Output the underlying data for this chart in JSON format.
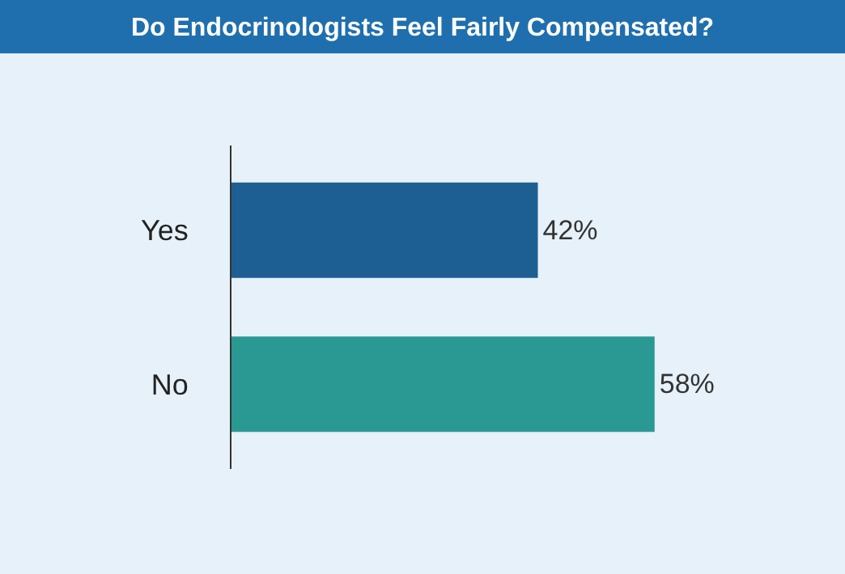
{
  "chart_data": {
    "type": "bar",
    "orientation": "horizontal",
    "title": "Do Endocrinologists Feel Fairly Compensated?",
    "categories": [
      "Yes",
      "No"
    ],
    "values": [
      42,
      58
    ],
    "colors": [
      "#1d5f93",
      "#2a9994"
    ],
    "value_labels": [
      "42%",
      "58%"
    ],
    "grid": false
  }
}
